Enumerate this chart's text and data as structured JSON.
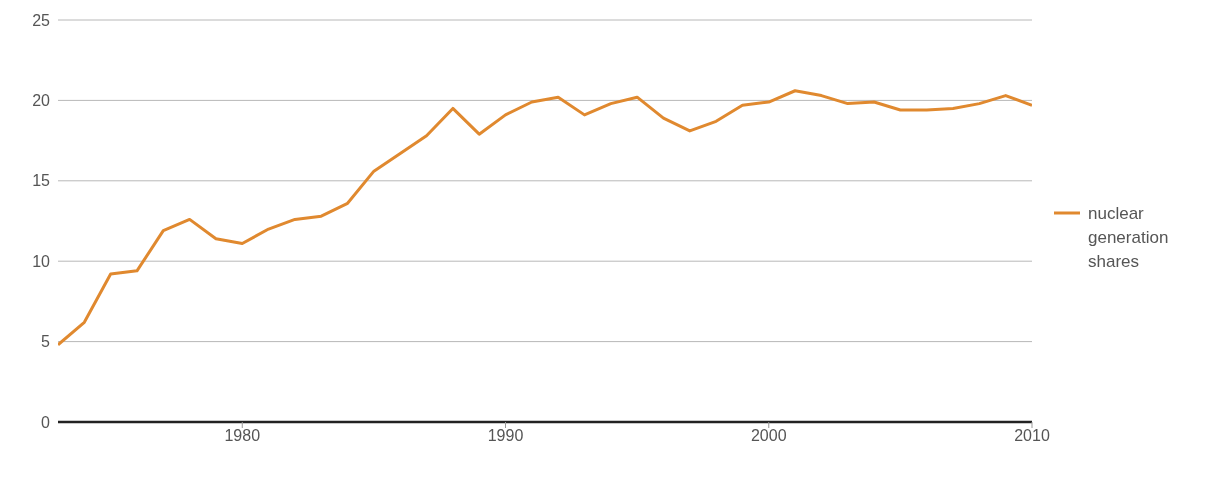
{
  "chart_data": {
    "type": "line",
    "x": [
      1973,
      1974,
      1975,
      1976,
      1977,
      1978,
      1979,
      1980,
      1981,
      1982,
      1983,
      1984,
      1985,
      1986,
      1987,
      1988,
      1989,
      1990,
      1991,
      1992,
      1993,
      1994,
      1995,
      1996,
      1997,
      1998,
      1999,
      2000,
      2001,
      2002,
      2003,
      2004,
      2005,
      2006,
      2007,
      2008,
      2009,
      2010
    ],
    "series": [
      {
        "name": "nuclear generation shares",
        "color": "#e0892f",
        "values": [
          4.8,
          6.2,
          9.2,
          9.4,
          11.9,
          12.6,
          11.4,
          11.1,
          12.0,
          12.6,
          12.8,
          13.6,
          15.6,
          16.7,
          17.8,
          19.5,
          17.9,
          19.1,
          19.9,
          20.2,
          19.1,
          19.8,
          20.2,
          18.9,
          18.1,
          18.7,
          19.7,
          19.9,
          20.6,
          20.3,
          19.8,
          19.9,
          19.4,
          19.4,
          19.5,
          19.8,
          20.3,
          19.7
        ]
      }
    ],
    "xlim": [
      1973,
      2010
    ],
    "xticks": [
      1980,
      1990,
      2000,
      2010
    ],
    "ylim": [
      0,
      25
    ],
    "yticks": [
      0,
      5,
      10,
      15,
      20,
      25
    ],
    "grid": "y",
    "legend": "right",
    "marker": "none",
    "line_style": "solid"
  }
}
